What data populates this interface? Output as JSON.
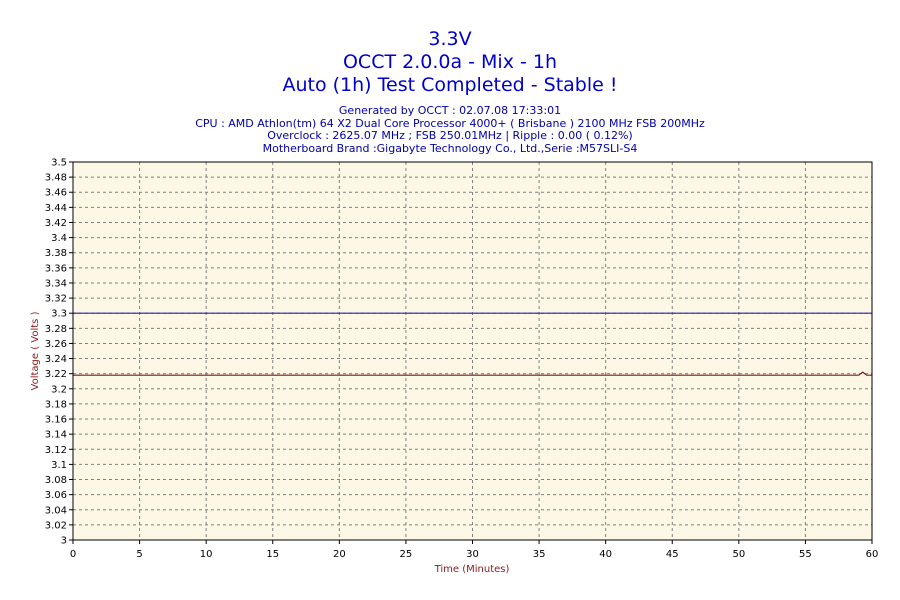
{
  "chart_data": {
    "type": "line",
    "title": "3.3V",
    "subtitle": "OCCT 2.0.0a - Mix - 1h",
    "status": "Auto (1h) Test Completed - Stable !",
    "meta_lines": [
      "Generated by OCCT : 02.07.08 17:33:01",
      "CPU : AMD Athlon(tm) 64 X2 Dual Core Processor 4000+ ( Brisbane ) 2100 MHz FSB 200MHz",
      "Overclock : 2625.07 MHz ; FSB 250.01MHz | Ripple : 0.00 ( 0.12%)",
      "Motherboard Brand :Gigabyte Technology Co., Ltd.,Serie :M57SLI-S4"
    ],
    "xlabel": "Time (Minutes)",
    "ylabel": "Voltage ( Volts )",
    "xlim": [
      0,
      60
    ],
    "ylim": [
      3.0,
      3.5
    ],
    "x_ticks": [
      "0",
      "5",
      "10",
      "15",
      "20",
      "25",
      "30",
      "35",
      "40",
      "45",
      "50",
      "55",
      "60"
    ],
    "y_ticks": [
      "3",
      "3.02",
      "3.04",
      "3.06",
      "3.08",
      "3.1",
      "3.12",
      "3.14",
      "3.16",
      "3.18",
      "3.2",
      "3.22",
      "3.24",
      "3.26",
      "3.28",
      "3.3",
      "3.32",
      "3.34",
      "3.36",
      "3.38",
      "3.4",
      "3.42",
      "3.44",
      "3.46",
      "3.48",
      "3.5"
    ],
    "grid": true,
    "series": [
      {
        "x": [
          0,
          60
        ],
        "y": [
          3.3,
          3.3
        ]
      },
      {
        "x": [
          0,
          59,
          59.3,
          59.6,
          60
        ],
        "y": [
          3.218,
          3.218,
          3.222,
          3.218,
          3.218
        ]
      }
    ],
    "colors": {
      "plot_background": "#fdf8e6",
      "grid": "#808080",
      "reference_line": "#2323b0",
      "measured_line": "#7a1a1a",
      "title": "#0000cc",
      "meta": "#0000aa",
      "axis_label": "#8b1a1a"
    }
  }
}
